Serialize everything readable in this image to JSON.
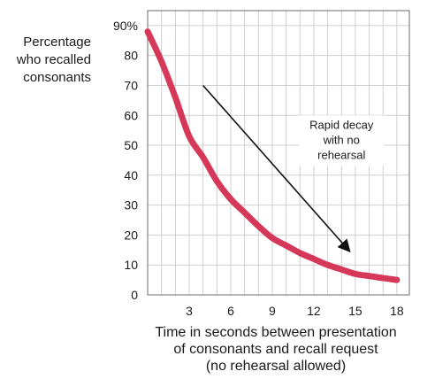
{
  "chart_data": {
    "type": "line",
    "ylabel_lines": [
      "Percentage",
      "who recalled",
      "consonants"
    ],
    "xlabel_lines": [
      "Time in seconds between presentation",
      "of consonants and recall request",
      "(no rehearsal allowed)"
    ],
    "xlim": [
      0,
      18.9
    ],
    "ylim": [
      0,
      95
    ],
    "x_ticks": [
      3,
      6,
      9,
      12,
      15,
      18
    ],
    "y_ticks": [
      0,
      10,
      20,
      30,
      40,
      50,
      60,
      70,
      80,
      90
    ],
    "y_tick_labels": [
      "0",
      "10",
      "20",
      "30",
      "40",
      "50",
      "60",
      "70",
      "80",
      "90%"
    ],
    "grid": true,
    "series": [
      {
        "color": "#d6385a",
        "x": [
          0,
          1,
          2,
          3,
          4,
          5,
          6,
          7,
          8,
          9,
          10,
          11,
          12,
          13,
          14,
          15,
          16,
          17,
          18
        ],
        "y": [
          88,
          78,
          66,
          53,
          46,
          38,
          32,
          27.5,
          23,
          19,
          16.5,
          14,
          12,
          10,
          8.5,
          7,
          6.3,
          5.6,
          5
        ]
      }
    ],
    "annotation": {
      "lines": [
        "Rapid decay",
        "with no",
        "rehearsal"
      ],
      "arrow_from": [
        4,
        70
      ],
      "arrow_to": [
        14.6,
        14.5
      ],
      "text_center": [
        14,
        52
      ]
    }
  }
}
